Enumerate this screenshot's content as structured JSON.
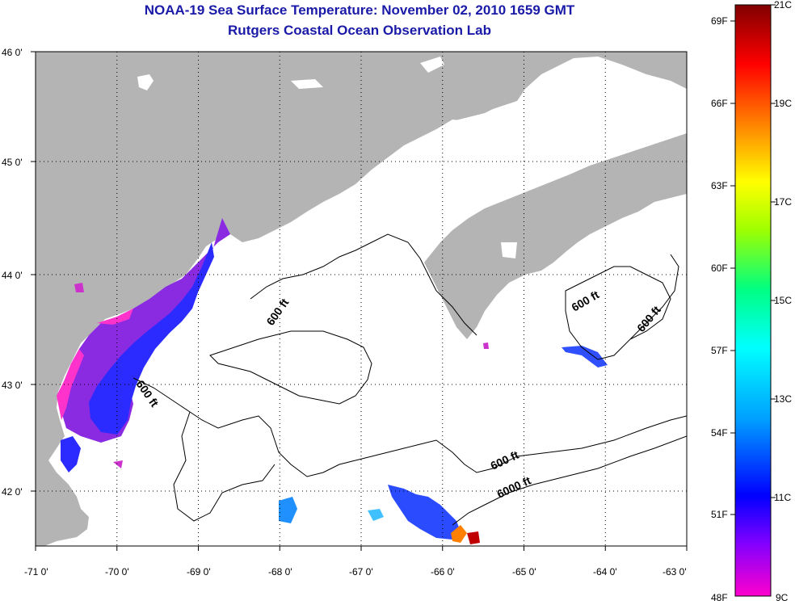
{
  "header": {
    "title": "NOAA-19 Sea Surface Temperature:  November 02, 2010 1659 GMT",
    "subtitle": "Rutgers Coastal Ocean Observation Lab"
  },
  "map": {
    "lon_range": [
      -71,
      -63
    ],
    "lat_range": [
      41.5,
      46
    ],
    "lon_ticks": [
      "-71 0'",
      "-70 0'",
      "-69 0'",
      "-68 0'",
      "-67 0'",
      "-66 0'",
      "-65 0'",
      "-64 0'",
      "-63 0'"
    ],
    "lat_ticks": [
      "46 0'",
      "45 0'",
      "44 0'",
      "43 0'",
      "42 0'"
    ],
    "grid": "dotted",
    "land_color": "#b4b4b4",
    "water_color": "#ffffff",
    "contour_labels": [
      "600 ft",
      "600 ft",
      "600 ft",
      "600 ft",
      "600 ft",
      "6000 ft"
    ]
  },
  "colorbar": {
    "fahrenheit_labels": [
      "69F",
      "66F",
      "63F",
      "60F",
      "57F",
      "54F",
      "51F",
      "48F"
    ],
    "celsius_labels": [
      "21C",
      "19C",
      "17C",
      "15C",
      "13C",
      "11C",
      "9C"
    ],
    "range_c": [
      9,
      21
    ],
    "colors": [
      "#ff00cc",
      "#8000ff",
      "#0000ff",
      "#00a0ff",
      "#00ffff",
      "#00ff80",
      "#a0ff00",
      "#ffff00",
      "#ff8000",
      "#ff0000",
      "#800000"
    ]
  }
}
